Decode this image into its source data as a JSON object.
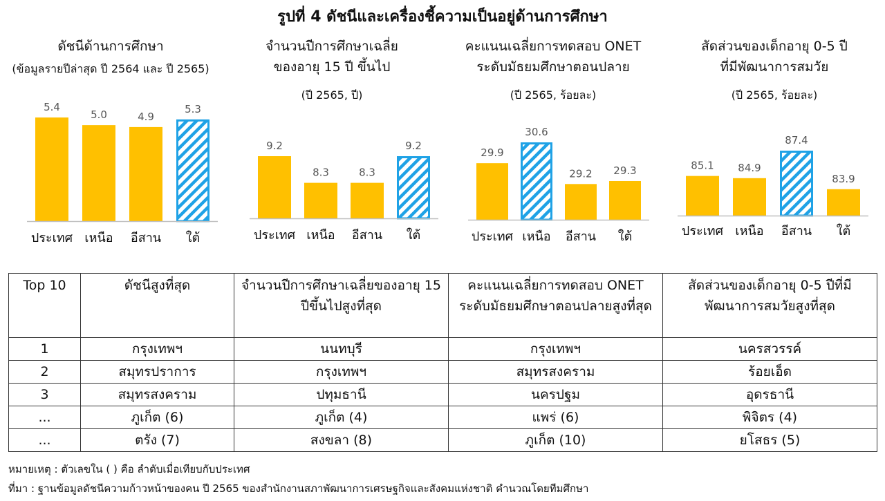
{
  "title": "รูปที่ 4 ดัชนีและเครื่องชี้ความเป็นอยู่ด้านการศึกษา",
  "colors": {
    "bar": "#FFC000",
    "hatch": "#1FA2E6",
    "axis": "#BFBFBF",
    "label": "#555555"
  },
  "chart_data": [
    {
      "type": "bar",
      "title_lines": [
        "ดัชนีด้านการศึกษา"
      ],
      "subtitle": "(ข้อมูลรายปีล่าสุด ปี 2564 และ ปี 2565)",
      "categories": [
        "ประเทศ",
        "เหนือ",
        "อีสาน",
        "ใต้"
      ],
      "values": [
        5.4,
        5.0,
        4.9,
        5.3
      ],
      "highlight_index": 3
    },
    {
      "type": "bar",
      "title_lines": [
        "จำนวนปีการศึกษาเฉลี่ย",
        "ของอายุ 15 ปี ขึ้นไป"
      ],
      "subtitle": "(ปี 2565, ปี)",
      "categories": [
        "ประเทศ",
        "เหนือ",
        "อีสาน",
        "ใต้"
      ],
      "values": [
        9.2,
        8.3,
        8.3,
        9.2
      ],
      "highlight_index": 3
    },
    {
      "type": "bar",
      "title_lines": [
        "คะแนนเฉลี่ยการทดสอบ ONET",
        "ระดับมัธยมศึกษาตอนปลาย"
      ],
      "subtitle": "(ปี 2565, ร้อยละ)",
      "categories": [
        "ประเทศ",
        "เหนือ",
        "อีสาน",
        "ใต้"
      ],
      "values": [
        29.9,
        30.6,
        29.2,
        29.3
      ],
      "highlight_index": 1
    },
    {
      "type": "bar",
      "title_lines": [
        "สัดส่วนของเด็กอายุ 0-5 ปี",
        "ที่มีพัฒนาการสมวัย"
      ],
      "subtitle": "(ปี 2565, ร้อยละ)",
      "categories": [
        "ประเทศ",
        "เหนือ",
        "อีสาน",
        "ใต้"
      ],
      "values": [
        85.1,
        84.9,
        87.4,
        83.9
      ],
      "highlight_index": 2
    }
  ],
  "table": {
    "headers": [
      "Top 10",
      "ดัชนีสูงที่สุด",
      "จำนวนปีการศึกษาเฉลี่ยของอายุ 15 ปีขึ้นไปสูงที่สุด",
      "คะแนนเฉลี่ยการทดสอบ ONET ระดับมัธยมศึกษาตอนปลายสูงที่สุด",
      "สัดส่วนของเด็กอายุ 0-5 ปีที่มีพัฒนาการสมวัยสูงที่สุด"
    ],
    "rows": [
      [
        "1",
        "กรุงเทพฯ",
        "นนทบุรี",
        "กรุงเทพฯ",
        "นครสวรรค์"
      ],
      [
        "2",
        "สมุทรปราการ",
        "กรุงเทพฯ",
        "สมุทรสงคราม",
        "ร้อยเอ็ด"
      ],
      [
        "3",
        "สมุทรสงคราม",
        "ปทุมธานี",
        "นครปฐม",
        "อุดรธานี"
      ],
      [
        "...",
        "ภูเก็ต (6)",
        "ภูเก็ต (4)",
        "แพร่ (6)",
        "พิจิตร (4)"
      ],
      [
        "...",
        "ตรัง (7)",
        "สงขลา (8)",
        "ภูเก็ต (10)",
        "ยโสธร (5)"
      ]
    ]
  },
  "note": "หมายเหตุ : ตัวเลขใน ( ) คือ ลำดับเมื่อเทียบกับประเทศ",
  "source": "ที่มา : ฐานข้อมูลดัชนีความก้าวหน้าของคน ปี 2565 ของสำนักงานสภาพัฒนาการเศรษฐกิจและสังคมแห่งชาติ คำนวณโดยทีมศึกษา"
}
